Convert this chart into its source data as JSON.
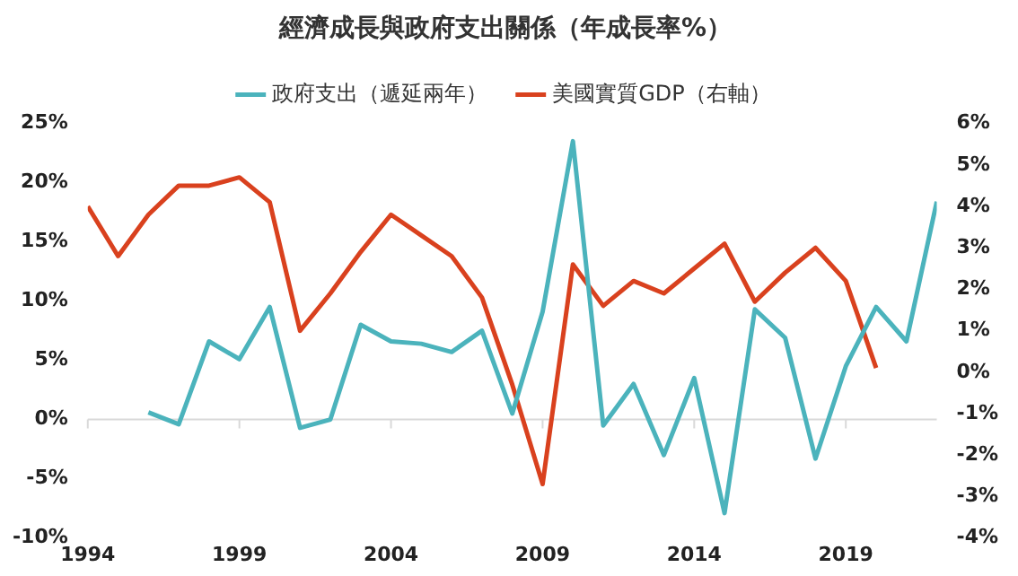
{
  "chart_data": {
    "type": "line",
    "title": "經濟成長與政府支出關係（年成長率%）",
    "x": [
      1994,
      1995,
      1996,
      1997,
      1998,
      1999,
      2000,
      2001,
      2002,
      2003,
      2004,
      2005,
      2006,
      2007,
      2008,
      2009,
      2010,
      2011,
      2012,
      2013,
      2014,
      2015,
      2016,
      2017,
      2018,
      2019,
      2020,
      2021,
      2022
    ],
    "series": [
      {
        "name": "政府支出（遞延兩年）",
        "color": "#4bb3bc",
        "values": [
          null,
          null,
          0.6,
          -0.4,
          6.6,
          5.1,
          9.5,
          -0.7,
          0,
          8.0,
          6.6,
          6.4,
          5.7,
          7.5,
          0.5,
          9.1,
          23.5,
          -0.5,
          3.0,
          -3.0,
          3.5,
          -7.9,
          9.3,
          6.9,
          -3.3,
          4.5,
          9.5,
          6.6,
          18.4
        ]
      },
      {
        "name": "美國實質GDP（右軸）",
        "color": "#d9411e",
        "axis": "y2",
        "values": [
          4.0,
          2.8,
          3.8,
          4.5,
          4.5,
          4.7,
          4.1,
          1.0,
          1.9,
          2.9,
          3.8,
          3.3,
          2.8,
          1.8,
          -0.3,
          -2.7,
          2.6,
          1.6,
          2.2,
          1.9,
          2.5,
          3.1,
          1.7,
          2.4,
          3.0,
          2.2,
          0.1,
          null,
          null
        ]
      }
    ],
    "xlim": [
      1994,
      2022
    ],
    "xticks": [
      1994,
      1999,
      2004,
      2009,
      2014,
      2019
    ],
    "ylim": [
      -10,
      25
    ],
    "yticks": [
      {
        "value": -10,
        "label": "-10%"
      },
      {
        "value": -5,
        "label": "-5%"
      },
      {
        "value": 0,
        "label": "0%"
      },
      {
        "value": 5,
        "label": "5%"
      },
      {
        "value": 10,
        "label": "10%"
      },
      {
        "value": 15,
        "label": "15%"
      },
      {
        "value": 20,
        "label": "20%"
      },
      {
        "value": 25,
        "label": "25%"
      }
    ],
    "y2lim": [
      -4,
      6
    ],
    "y2ticks": [
      {
        "value": -4,
        "label": "-4%"
      },
      {
        "value": -3,
        "label": "-3%"
      },
      {
        "value": -2,
        "label": "-2%"
      },
      {
        "value": -1,
        "label": "-1%"
      },
      {
        "value": 0,
        "label": "0%"
      },
      {
        "value": 1,
        "label": "1%"
      },
      {
        "value": 2,
        "label": "2%"
      },
      {
        "value": 3,
        "label": "3%"
      },
      {
        "value": 4,
        "label": "4%"
      },
      {
        "value": 5,
        "label": "5%"
      },
      {
        "value": 6,
        "label": "6%"
      }
    ],
    "ref_lines": [
      {
        "axis": "y",
        "value": 0,
        "color": "#d9d9d9"
      }
    ],
    "grid": false,
    "legend": "top",
    "marker": "none",
    "line_style": "solid"
  }
}
